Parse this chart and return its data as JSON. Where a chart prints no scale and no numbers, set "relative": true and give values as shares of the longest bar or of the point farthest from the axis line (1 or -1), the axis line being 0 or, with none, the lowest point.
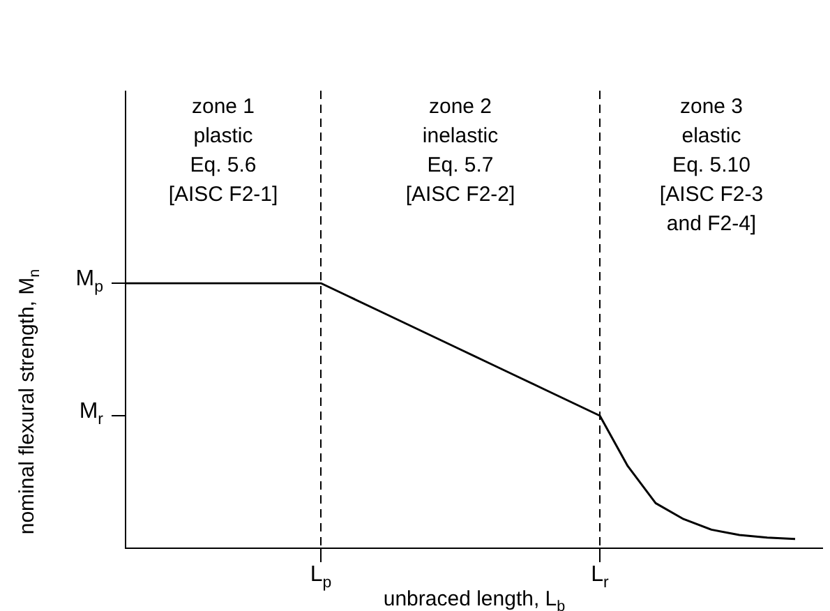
{
  "chart_data": {
    "type": "line",
    "xlabel": "unbraced length, L$_{b}$",
    "ylabel": "nominal flexural strength, M$_{n}$",
    "categories": [
      null,
      null,
      null,
      null,
      null,
      null,
      null,
      "L$_{p}$",
      null,
      null,
      null,
      null,
      null,
      null,
      null,
      null,
      null,
      "L$_{r}$",
      null,
      null,
      null,
      null,
      null,
      null,
      null,
      null
    ],
    "series": [
      {
        "color": "#000000",
        "values": [
          1,
          1,
          1,
          1,
          1,
          1,
          1,
          1,
          0.95,
          0.9,
          0.85,
          0.8,
          0.75,
          0.7,
          0.65,
          0.6,
          0.55,
          0.5,
          0.31,
          0.17,
          0.11,
          0.07,
          0.05,
          0.04,
          0.035,
          null
        ]
      }
    ],
    "relative": true,
    "ref_lines": [
      {
        "axis": "x",
        "value": "L$_{p}$",
        "line_style": "dashed",
        "color": "#000000"
      },
      {
        "axis": "x",
        "value": "L$_{r}$",
        "line_style": "dashed",
        "color": "#000000"
      }
    ],
    "annotations": [
      "M$_{p}$",
      "M$_{r}$",
      "zone 1\nplastic\nEq. 5.6\n[AISC F2-1]",
      "zone 2\ninelastic\nEq. 5.7\n[AISC F2-2]",
      "zone 3\nelastic\nEq. 5.10\n[AISC F2-3\nand F2-4]"
    ],
    "grid": false,
    "legend": false,
    "marker": "none",
    "line_style": "solid"
  }
}
